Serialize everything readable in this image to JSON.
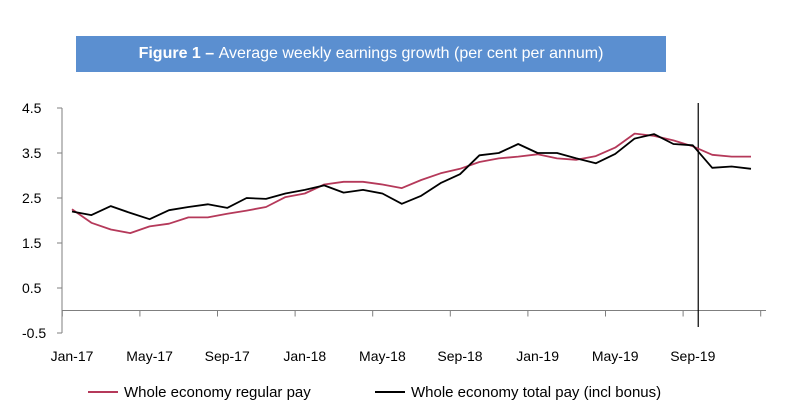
{
  "title": {
    "bold": "Figure 1 –",
    "rest": "Average weekly earnings growth (per cent per annum)"
  },
  "chart_data": {
    "type": "line",
    "title": "Figure 1 – Average weekly earnings growth (per cent per annum)",
    "xlabel": "",
    "ylabel": "",
    "ylim": [
      -0.5,
      4.5
    ],
    "yticks": [
      4.5,
      3.5,
      2.5,
      1.5,
      0.5,
      -0.5
    ],
    "ytick_labels": [
      "4.5",
      "3.5",
      "2.5",
      "1.5",
      "0.5",
      "-0.5"
    ],
    "x": [
      "Jan-17",
      "Feb-17",
      "Mar-17",
      "Apr-17",
      "May-17",
      "Jun-17",
      "Jul-17",
      "Aug-17",
      "Sep-17",
      "Oct-17",
      "Nov-17",
      "Dec-17",
      "Jan-18",
      "Feb-18",
      "Mar-18",
      "Apr-18",
      "May-18",
      "Jun-18",
      "Jul-18",
      "Aug-18",
      "Sep-18",
      "Oct-18",
      "Nov-18",
      "Dec-18",
      "Jan-19",
      "Feb-19",
      "Mar-19",
      "Apr-19",
      "May-19",
      "Jun-19",
      "Jul-19",
      "Aug-19",
      "Sep-19",
      "Oct-19",
      "Nov-19",
      "Dec-19"
    ],
    "xtick_labels": [
      "Jan-17",
      "May-17",
      "Sep-17",
      "Jan-18",
      "May-18",
      "Sep-18",
      "Jan-19",
      "May-19",
      "Sep-19"
    ],
    "xtick_months": [
      0,
      4,
      8,
      12,
      16,
      20,
      24,
      28,
      32
    ],
    "vertical_line_after": "Oct-19",
    "grid": false,
    "legend_position": "bottom",
    "series": [
      {
        "name": "Whole economy regular pay",
        "color": "#b5395a",
        "values": [
          2.25,
          1.95,
          1.8,
          1.72,
          1.87,
          1.93,
          2.07,
          2.07,
          2.15,
          2.22,
          2.3,
          2.52,
          2.6,
          2.8,
          2.86,
          2.86,
          2.8,
          2.72,
          2.9,
          3.05,
          3.15,
          3.3,
          3.38,
          3.42,
          3.47,
          3.38,
          3.35,
          3.43,
          3.62,
          3.93,
          3.88,
          3.78,
          3.65,
          3.46,
          3.42,
          3.42
        ]
      },
      {
        "name": "Whole economy total pay (incl bonus)",
        "color": "#000000",
        "values": [
          2.2,
          2.12,
          2.32,
          2.17,
          2.03,
          2.23,
          2.3,
          2.36,
          2.28,
          2.5,
          2.48,
          2.6,
          2.68,
          2.78,
          2.62,
          2.68,
          2.6,
          2.37,
          2.55,
          2.83,
          3.03,
          3.45,
          3.5,
          3.7,
          3.5,
          3.5,
          3.38,
          3.27,
          3.48,
          3.82,
          3.92,
          3.7,
          3.67,
          3.17,
          3.2,
          3.15
        ]
      }
    ]
  }
}
